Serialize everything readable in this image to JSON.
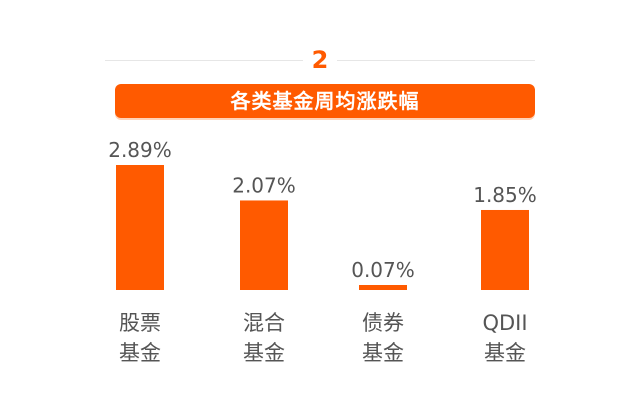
{
  "section": {
    "number": "2"
  },
  "colors": {
    "accent": "#ff5a00",
    "text": "#555555",
    "divider": "#e6e6e6"
  },
  "chart_data": {
    "type": "bar",
    "title": "各类基金周均涨跌幅",
    "categories": [
      {
        "line1": "股票",
        "line2": "基金"
      },
      {
        "line1": "混合",
        "line2": "基金"
      },
      {
        "line1": "债券",
        "line2": "基金"
      },
      {
        "line1": "QDII",
        "line2": "基金"
      }
    ],
    "values": [
      2.89,
      2.07,
      0.07,
      1.85
    ],
    "value_labels": [
      "2.89%",
      "2.07%",
      "0.07%",
      "1.85%"
    ],
    "ylim": [
      0,
      2.89
    ],
    "grid": false,
    "legend": "none",
    "bar_color": "#ff5a00"
  }
}
